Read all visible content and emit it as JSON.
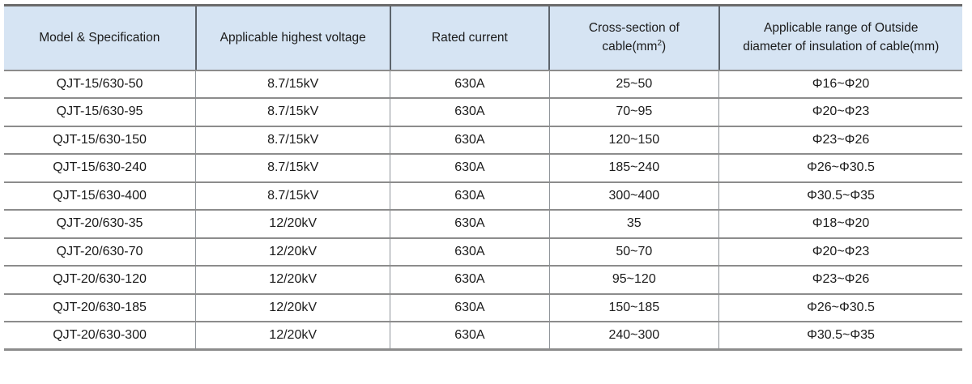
{
  "page": {
    "background": "#ffffff"
  },
  "theme": {
    "header_bg": "#d6e4f3",
    "text_color": "#1b1b1b",
    "border_strong": "#6b6b6b",
    "border_row": "#8c8c8c",
    "border_col_header": "#5d646c",
    "border_col_body": "#8f9499"
  },
  "table": {
    "columns": [
      {
        "id": "model",
        "label": "Model & Specification"
      },
      {
        "id": "voltage",
        "label": "Applicable highest voltage"
      },
      {
        "id": "current",
        "label": "Rated current"
      },
      {
        "id": "cross-section",
        "lines": [
          {
            "text": "Cross-section of"
          },
          {
            "pre": "cable(mm",
            "sup": "2",
            "post": ")"
          }
        ]
      },
      {
        "id": "outside-diameter",
        "lines": [
          {
            "text": "Applicable range of Outside"
          },
          {
            "text": "diameter of insulation of cable(mm)"
          }
        ]
      }
    ],
    "rows": [
      [
        "QJT-15/630-50",
        "8.7/15kV",
        "630A",
        "25~50",
        "Φ16~Φ20"
      ],
      [
        "QJT-15/630-95",
        "8.7/15kV",
        "630A",
        "70~95",
        "Φ20~Φ23"
      ],
      [
        "QJT-15/630-150",
        "8.7/15kV",
        "630A",
        "120~150",
        "Φ23~Φ26"
      ],
      [
        "QJT-15/630-240",
        "8.7/15kV",
        "630A",
        "185~240",
        "Φ26~Φ30.5"
      ],
      [
        "QJT-15/630-400",
        "8.7/15kV",
        "630A",
        "300~400",
        "Φ30.5~Φ35"
      ],
      [
        "QJT-20/630-35",
        "12/20kV",
        "630A",
        "35",
        "Φ18~Φ20"
      ],
      [
        "QJT-20/630-70",
        "12/20kV",
        "630A",
        "50~70",
        "Φ20~Φ23"
      ],
      [
        "QJT-20/630-120",
        "12/20kV",
        "630A",
        "95~120",
        "Φ23~Φ26"
      ],
      [
        "QJT-20/630-185",
        "12/20kV",
        "630A",
        "150~185",
        "Φ26~Φ30.5"
      ],
      [
        "QJT-20/630-300",
        "12/20kV",
        "630A",
        "240~300",
        "Φ30.5~Φ35"
      ]
    ]
  }
}
